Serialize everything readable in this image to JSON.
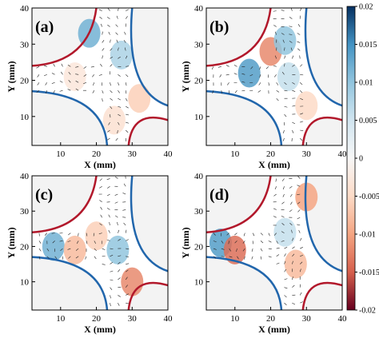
{
  "chart_data": {
    "type": "heatmap",
    "panels": [
      {
        "label": "(a)",
        "xlabel": "X (mm)",
        "ylabel": "Y (mm)",
        "xticks": [
          "10",
          "20",
          "30",
          "40"
        ],
        "yticks": [
          "10",
          "20",
          "30",
          "40"
        ],
        "xlim": [
          2,
          40
        ],
        "ylim": [
          2,
          40
        ],
        "features": [
          {
            "x": 18,
            "y": 33,
            "value": 0.012
          },
          {
            "x": 27,
            "y": 27,
            "value": 0.008
          },
          {
            "x": 25,
            "y": 9,
            "value": -0.004
          },
          {
            "x": 14,
            "y": 21,
            "value": -0.003
          },
          {
            "x": 32,
            "y": 15,
            "value": -0.006
          }
        ]
      },
      {
        "label": "(b)",
        "xlabel": "X (mm)",
        "ylabel": "Y (mm)",
        "xticks": [
          "10",
          "20",
          "30",
          "40"
        ],
        "yticks": [
          "10",
          "20",
          "30",
          "40"
        ],
        "xlim": [
          2,
          40
        ],
        "ylim": [
          2,
          40
        ],
        "features": [
          {
            "x": 20,
            "y": 28,
            "value": -0.012
          },
          {
            "x": 14,
            "y": 22,
            "value": 0.014
          },
          {
            "x": 24,
            "y": 31,
            "value": 0.01
          },
          {
            "x": 25,
            "y": 21,
            "value": 0.006
          },
          {
            "x": 30,
            "y": 13,
            "value": -0.005
          }
        ]
      },
      {
        "label": "(c)",
        "xlabel": "X (mm)",
        "ylabel": "Y (mm)",
        "xticks": [
          "10",
          "20",
          "30",
          "40"
        ],
        "yticks": [
          "10",
          "20",
          "30",
          "40"
        ],
        "xlim": [
          2,
          40
        ],
        "ylim": [
          2,
          40
        ],
        "features": [
          {
            "x": 8,
            "y": 20,
            "value": 0.012
          },
          {
            "x": 14,
            "y": 19,
            "value": -0.008
          },
          {
            "x": 20,
            "y": 23,
            "value": -0.006
          },
          {
            "x": 26,
            "y": 19,
            "value": 0.01
          },
          {
            "x": 30,
            "y": 10,
            "value": -0.012
          }
        ]
      },
      {
        "label": "(d)",
        "xlabel": "X (mm)",
        "ylabel": "Y (mm)",
        "xticks": [
          "10",
          "20",
          "30",
          "40"
        ],
        "yticks": [
          "10",
          "20",
          "30",
          "40"
        ],
        "xlim": [
          2,
          40
        ],
        "ylim": [
          2,
          40
        ],
        "features": [
          {
            "x": 6,
            "y": 21,
            "value": 0.014
          },
          {
            "x": 10,
            "y": 19,
            "value": -0.014
          },
          {
            "x": 24,
            "y": 24,
            "value": 0.006
          },
          {
            "x": 27,
            "y": 15,
            "value": -0.008
          },
          {
            "x": 30,
            "y": 34,
            "value": -0.01
          }
        ]
      }
    ],
    "colorbar": {
      "min": -0.02,
      "max": 0.02,
      "ticks": [
        "0.02",
        "0.015",
        "0.01",
        "0.005",
        "0",
        "-0.005",
        "-0.01",
        "-0.015",
        "-0.02"
      ],
      "colors": [
        "#67001f",
        "#d6604d",
        "#f4a582",
        "#fddbc7",
        "#f7f7f7",
        "#d1e5f0",
        "#92c5de",
        "#4393c3",
        "#053061"
      ]
    },
    "grid": false
  }
}
